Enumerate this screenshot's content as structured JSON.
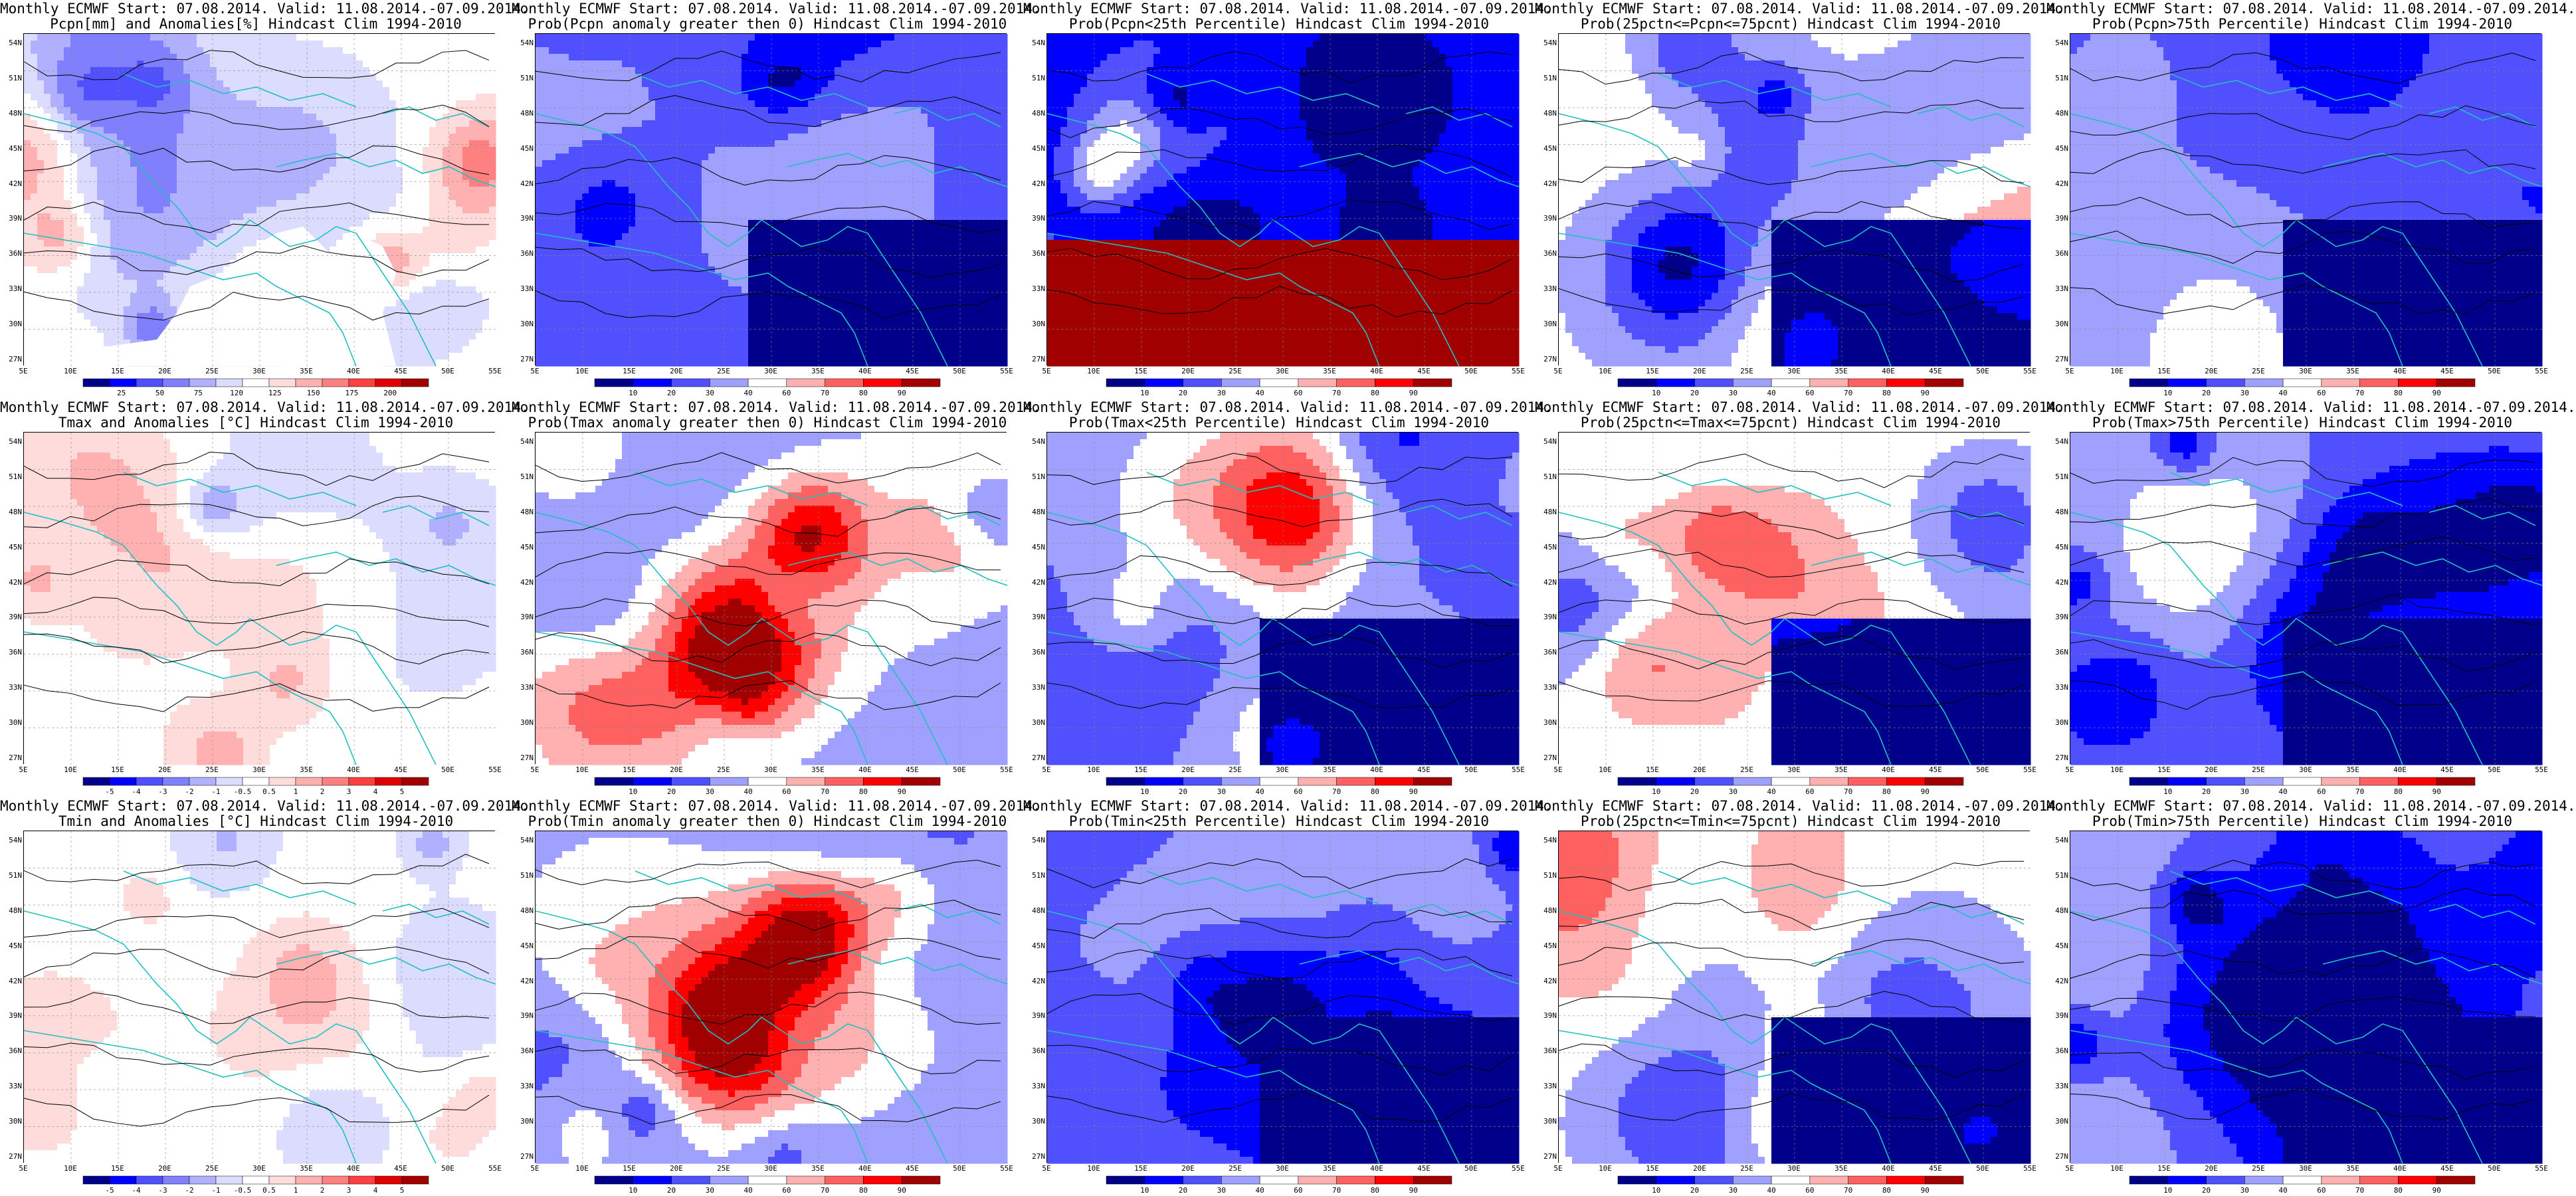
{
  "panels": [
    {
      "line1": "Monthly ECMWF Start: 07.08.2014. Valid: 11.08.2014.-07.09.2014.",
      "line2": "Pcpn[mm] and Anomalies[%] Hindcast Clim 1994-2010",
      "kind": "pcpn_anom",
      "cbar": "anom_pcpn",
      "ticks": [
        "25",
        "50",
        "75",
        "120",
        "125",
        "150",
        "175",
        "200"
      ]
    },
    {
      "line1": "Monthly ECMWF Start: 07.08.2014. Valid: 11.08.2014.-07.09.2014.",
      "line2": "Prob(Pcpn anomaly greater then 0) Hindcast Clim 1994-2010",
      "kind": "prob_low",
      "cbar": "prob",
      "ticks": [
        "10",
        "20",
        "30",
        "40",
        "60",
        "70",
        "80",
        "90"
      ]
    },
    {
      "line1": "Monthly ECMWF Start: 07.08.2014. Valid: 11.08.2014.-07.09.2014.",
      "line2": "Prob(Pcpn<25th Percentile) Hindcast Clim 1994-2010",
      "kind": "prob_pcpn_low",
      "cbar": "prob",
      "ticks": [
        "10",
        "20",
        "30",
        "40",
        "60",
        "70",
        "80",
        "90"
      ]
    },
    {
      "line1": "Monthly ECMWF Start: 07.08.2014. Valid: 11.08.2014.-07.09.2014.",
      "line2": "Prob(25pctn<=Pcpn<=75pcnt) Hindcast Clim 1994-2010",
      "kind": "prob_mid",
      "cbar": "prob",
      "ticks": [
        "10",
        "20",
        "30",
        "40",
        "60",
        "70",
        "80",
        "90"
      ]
    },
    {
      "line1": "Monthly ECMWF Start: 07.08.2014. Valid: 11.08.2014.-07.09.2014.",
      "line2": "Prob(Pcpn>75th Percentile) Hindcast Clim 1994-2010",
      "kind": "prob_low",
      "cbar": "prob",
      "ticks": [
        "10",
        "20",
        "30",
        "40",
        "60",
        "70",
        "80",
        "90"
      ]
    },
    {
      "line1": "Monthly ECMWF Start: 07.08.2014. Valid: 11.08.2014.-07.09.2014.",
      "line2": "Tmax and Anomalies [°C] Hindcast Clim 1994-2010",
      "kind": "t_anom",
      "cbar": "anom_t",
      "ticks": [
        "-5",
        "-4",
        "-3",
        "-2",
        "-1",
        "-0.5",
        "0.5",
        "1",
        "2",
        "3",
        "4",
        "5"
      ]
    },
    {
      "line1": "Monthly ECMWF Start: 07.08.2014. Valid: 11.08.2014.-07.09.2014.",
      "line2": "Prob(Tmax anomaly greater then 0) Hindcast Clim 1994-2010",
      "kind": "prob_hot",
      "cbar": "prob",
      "ticks": [
        "10",
        "20",
        "30",
        "40",
        "60",
        "70",
        "80",
        "90"
      ]
    },
    {
      "line1": "Monthly ECMWF Start: 07.08.2014. Valid: 11.08.2014.-07.09.2014.",
      "line2": "Prob(Tmax<25th Percentile) Hindcast Clim 1994-2010",
      "kind": "prob_low",
      "cbar": "prob",
      "ticks": [
        "10",
        "20",
        "30",
        "40",
        "60",
        "70",
        "80",
        "90"
      ]
    },
    {
      "line1": "Monthly ECMWF Start: 07.08.2014. Valid: 11.08.2014.-07.09.2014.",
      "line2": "Prob(25pctn<=Tmax<=75pcnt) Hindcast Clim 1994-2010",
      "kind": "prob_mid",
      "cbar": "prob",
      "ticks": [
        "10",
        "20",
        "30",
        "40",
        "60",
        "70",
        "80",
        "90"
      ]
    },
    {
      "line1": "Monthly ECMWF Start: 07.08.2014. Valid: 11.08.2014.-07.09.2014.",
      "line2": "Prob(Tmax>75th Percentile) Hindcast Clim 1994-2010",
      "kind": "prob_low",
      "cbar": "prob",
      "ticks": [
        "10",
        "20",
        "30",
        "40",
        "60",
        "70",
        "80",
        "90"
      ]
    },
    {
      "line1": "Monthly ECMWF Start: 07.08.2014. Valid: 11.08.2014.-07.09.2014.",
      "line2": "Tmin and Anomalies [°C] Hindcast Clim 1994-2010",
      "kind": "t_anom",
      "cbar": "anom_t",
      "ticks": [
        "-5",
        "-4",
        "-3",
        "-2",
        "-1",
        "-0.5",
        "0.5",
        "1",
        "2",
        "3",
        "4",
        "5"
      ]
    },
    {
      "line1": "Monthly ECMWF Start: 07.08.2014. Valid: 11.08.2014.-07.09.2014.",
      "line2": "Prob(Tmin anomaly greater then 0) Hindcast Clim 1994-2010",
      "kind": "prob_hot",
      "cbar": "prob",
      "ticks": [
        "10",
        "20",
        "30",
        "40",
        "60",
        "70",
        "80",
        "90"
      ]
    },
    {
      "line1": "Monthly ECMWF Start: 07.08.2014. Valid: 11.08.2014.-07.09.2014.",
      "line2": "Prob(Tmin<25th Percentile) Hindcast Clim 1994-2010",
      "kind": "prob_low",
      "cbar": "prob",
      "ticks": [
        "10",
        "20",
        "30",
        "40",
        "60",
        "70",
        "80",
        "90"
      ]
    },
    {
      "line1": "Monthly ECMWF Start: 07.08.2014. Valid: 11.08.2014.-07.09.2014.",
      "line2": "Prob(25pctn<=Tmin<=75pcnt) Hindcast Clim 1994-2010",
      "kind": "prob_mid",
      "cbar": "prob",
      "ticks": [
        "10",
        "20",
        "30",
        "40",
        "60",
        "70",
        "80",
        "90"
      ]
    },
    {
      "line1": "Monthly ECMWF Start: 07.08.2014. Valid: 11.08.2014.-07.09.2014.",
      "line2": "Prob(Tmin>75th Percentile) Hindcast Clim 1994-2010",
      "kind": "prob_low",
      "cbar": "prob",
      "ticks": [
        "10",
        "20",
        "30",
        "40",
        "60",
        "70",
        "80",
        "90"
      ]
    }
  ],
  "lat_labels": [
    "54N",
    "51N",
    "48N",
    "45N",
    "42N",
    "39N",
    "36N",
    "33N",
    "30N",
    "27N"
  ],
  "lon_labels": [
    "5E",
    "10E",
    "15E",
    "20E",
    "25E",
    "30E",
    "35E",
    "40E",
    "45E",
    "50E",
    "55E"
  ],
  "colors": {
    "prob_scale": [
      "#00008b",
      "#0000ff",
      "#5050ff",
      "#a0a0ff",
      "#ffffff",
      "#ffb0b0",
      "#ff6060",
      "#ff0000",
      "#a00000"
    ],
    "anom_scale": [
      "#00008b",
      "#0000ff",
      "#5050ff",
      "#8080ff",
      "#b0b0ff",
      "#dcdcff",
      "#ffffff",
      "#ffdcdc",
      "#ffb0b0",
      "#ff8080",
      "#ff4040",
      "#e00000",
      "#a00000"
    ],
    "coast": "#20c0c0",
    "contour": "#000000"
  }
}
